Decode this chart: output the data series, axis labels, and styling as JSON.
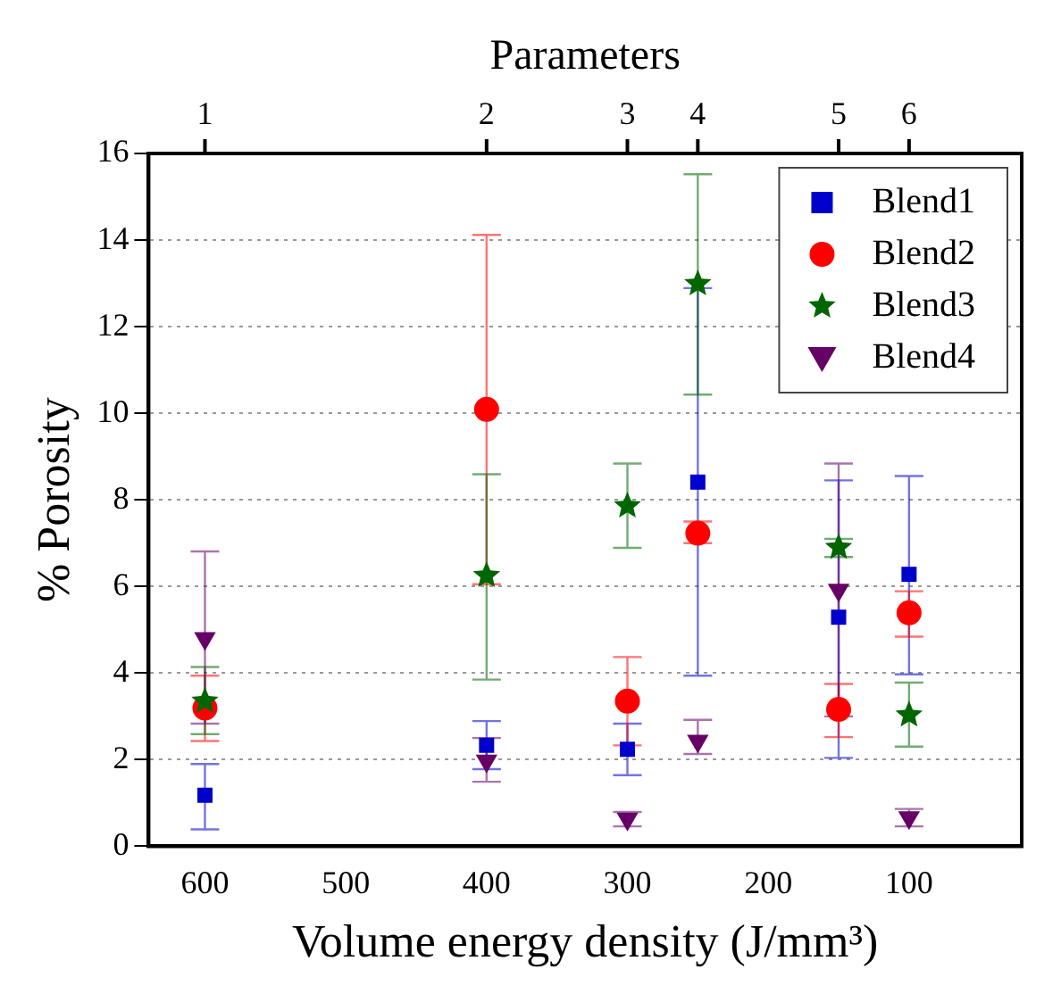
{
  "chart_data": {
    "type": "scatter",
    "xlabel": "Volume energy density (J/mm³)",
    "ylabel": "% Porosity",
    "x2label": "Parameters",
    "xlim": [
      640,
      20
    ],
    "xticks": [
      600,
      500,
      400,
      300,
      200,
      100
    ],
    "annotations": [
      {
        "text": "1",
        "x": 600
      },
      {
        "text": "2",
        "x": 400
      },
      {
        "text": "3",
        "x": 300
      },
      {
        "text": "4",
        "x": 250
      },
      {
        "text": "5",
        "x": 150
      },
      {
        "text": "6",
        "x": 100
      }
    ],
    "ylim": [
      0,
      16
    ],
    "yticks": [
      0,
      2,
      4,
      6,
      8,
      10,
      12,
      14,
      16
    ],
    "grid": "y",
    "legend": "top right",
    "x": [
      600,
      400,
      300,
      250,
      150,
      100
    ],
    "series": [
      {
        "name": "Blend1",
        "color": "#0000cc",
        "marker": "square",
        "values": [
          1.18,
          2.33,
          2.24,
          8.41,
          5.29,
          6.28
        ],
        "errors": [
          [
            0.39,
            1.9
          ],
          [
            1.78,
            2.89
          ],
          [
            1.64,
            2.83
          ],
          [
            3.94,
            12.89
          ],
          [
            2.04,
            8.45
          ],
          [
            3.97,
            8.55
          ]
        ]
      },
      {
        "name": "Blend2",
        "color": "#ff0000",
        "marker": "circle",
        "values": [
          3.19,
          10.09,
          3.35,
          7.23,
          3.16,
          5.39
        ],
        "errors": [
          [
            2.43,
            3.94
          ],
          [
            6.05,
            14.12
          ],
          [
            2.33,
            4.37
          ],
          [
            7.0,
            7.5
          ],
          [
            2.52,
            3.75
          ],
          [
            4.84,
            5.89
          ]
        ]
      },
      {
        "name": "Blend3",
        "color": "#006600",
        "marker": "star",
        "values": [
          3.35,
          6.25,
          7.86,
          12.99,
          6.9,
          3.03
        ],
        "errors": [
          [
            2.59,
            4.14
          ],
          [
            3.85,
            8.59
          ],
          [
            6.89,
            8.84
          ],
          [
            10.43,
            15.52
          ],
          [
            6.68,
            7.1
          ],
          [
            2.3,
            3.78
          ]
        ]
      },
      {
        "name": "Blend4",
        "color": "#660066",
        "marker": "triangle",
        "values": [
          4.8,
          1.97,
          0.63,
          2.43,
          5.92,
          0.66
        ],
        "errors": [
          [
            2.83,
            6.81
          ],
          [
            1.49,
            2.5
          ],
          [
            0.46,
            0.79
          ],
          [
            2.13,
            2.92
          ],
          [
            3.0,
            8.84
          ],
          [
            0.46,
            0.86
          ]
        ]
      }
    ]
  }
}
